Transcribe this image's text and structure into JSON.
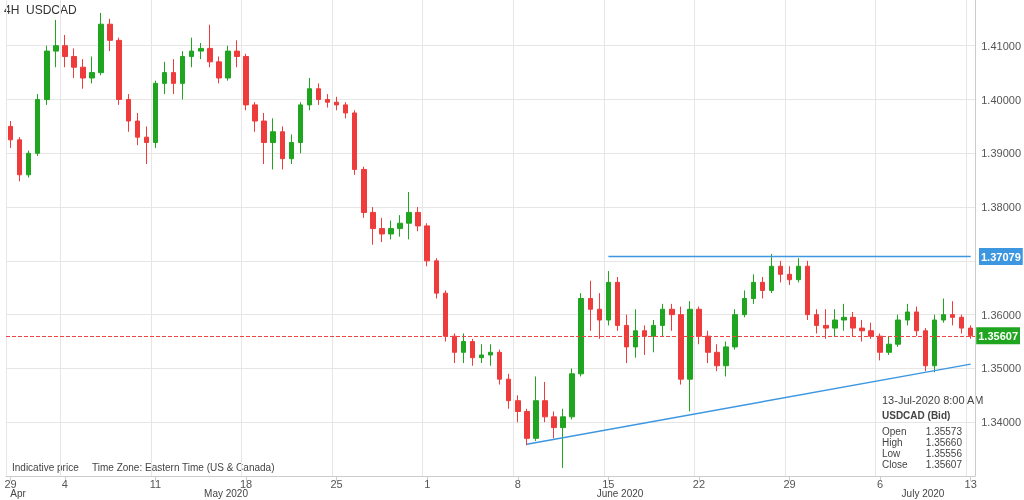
{
  "chart_data": {
    "type": "candlestick",
    "title": "4H",
    "subtitle": "USDCAD",
    "categories": [
      "29",
      null,
      null,
      null,
      null,
      null,
      "4",
      null,
      null,
      null,
      null,
      null,
      null,
      null,
      null,
      null,
      "11",
      null,
      null,
      null,
      null,
      null,
      null,
      null,
      null,
      null,
      "18",
      null,
      null,
      null,
      null,
      null,
      null,
      null,
      null,
      null,
      "25",
      null,
      null,
      null,
      null,
      null,
      null,
      null,
      null,
      null,
      "1",
      null,
      null,
      null,
      null,
      null,
      null,
      null,
      null,
      null,
      "8",
      null,
      null,
      null,
      null,
      null,
      null,
      null,
      null,
      null,
      "15",
      null,
      null,
      null,
      null,
      null,
      null,
      null,
      null,
      null,
      "22",
      null,
      null,
      null,
      null,
      null,
      null,
      null,
      null,
      null,
      "29",
      null,
      null,
      null,
      null,
      null,
      null,
      null,
      null,
      null,
      "6",
      null,
      null,
      null,
      null,
      null,
      null,
      null,
      null,
      null,
      "13"
    ],
    "ohlc": [
      [
        1.395,
        1.396,
        1.391,
        1.3925
      ],
      [
        1.3925,
        1.393,
        1.3848,
        1.386
      ],
      [
        1.386,
        1.3905,
        1.3855,
        1.39
      ],
      [
        1.39,
        1.401,
        1.3895,
        1.4
      ],
      [
        1.4,
        1.41,
        1.399,
        1.409
      ],
      [
        1.409,
        1.4148,
        1.406,
        1.41
      ],
      [
        1.41,
        1.412,
        1.406,
        1.408
      ],
      [
        1.408,
        1.4095,
        1.404,
        1.406
      ],
      [
        1.406,
        1.4075,
        1.402,
        1.404
      ],
      [
        1.404,
        1.408,
        1.403,
        1.405
      ],
      [
        1.405,
        1.4161,
        1.4045,
        1.414
      ],
      [
        1.414,
        1.415,
        1.409,
        1.411
      ],
      [
        1.411,
        1.4115,
        1.399,
        1.4
      ],
      [
        1.4,
        1.401,
        1.394,
        1.396
      ],
      [
        1.396,
        1.3975,
        1.3915,
        1.393
      ],
      [
        1.393,
        1.395,
        1.388,
        1.392
      ],
      [
        1.392,
        1.4035,
        1.391,
        1.403
      ],
      [
        1.403,
        1.407,
        1.401,
        1.405
      ],
      [
        1.405,
        1.4075,
        1.401,
        1.403
      ],
      [
        1.403,
        1.409,
        1.4,
        1.408
      ],
      [
        1.408,
        1.4115,
        1.406,
        1.409
      ],
      [
        1.409,
        1.4105,
        1.4075,
        1.4095
      ],
      [
        1.4095,
        1.4139,
        1.406,
        1.407
      ],
      [
        1.407,
        1.408,
        1.403,
        1.404
      ],
      [
        1.404,
        1.41,
        1.4035,
        1.409
      ],
      [
        1.409,
        1.411,
        1.406,
        1.408
      ],
      [
        1.408,
        1.4085,
        1.398,
        1.399
      ],
      [
        1.399,
        1.3995,
        1.394,
        1.396
      ],
      [
        1.396,
        1.3975,
        1.388,
        1.392
      ],
      [
        1.392,
        1.3965,
        1.387,
        1.394
      ],
      [
        1.394,
        1.395,
        1.387,
        1.389
      ],
      [
        1.389,
        1.3935,
        1.388,
        1.392
      ],
      [
        1.392,
        1.3995,
        1.39,
        1.399
      ],
      [
        1.399,
        1.404,
        1.398,
        1.402
      ],
      [
        1.402,
        1.403,
        1.399,
        1.4
      ],
      [
        1.4,
        1.401,
        1.3985,
        1.3995
      ],
      [
        1.3995,
        1.4005,
        1.398,
        1.399
      ],
      [
        1.399,
        1.3995,
        1.3965,
        1.3975
      ],
      [
        1.3975,
        1.398,
        1.386,
        1.387
      ],
      [
        1.387,
        1.3875,
        1.378,
        1.379
      ],
      [
        1.379,
        1.38,
        1.373,
        1.376
      ],
      [
        1.376,
        1.378,
        1.3735,
        1.375
      ],
      [
        1.375,
        1.3775,
        1.374,
        1.376
      ],
      [
        1.376,
        1.3785,
        1.3745,
        1.377
      ],
      [
        1.377,
        1.3828,
        1.374,
        1.379
      ],
      [
        1.379,
        1.38,
        1.3755,
        1.3765
      ],
      [
        1.3765,
        1.377,
        1.369,
        1.37
      ],
      [
        1.37,
        1.3705,
        1.363,
        1.364
      ],
      [
        1.364,
        1.3645,
        1.355,
        1.356
      ],
      [
        1.356,
        1.3565,
        1.351,
        1.353
      ],
      [
        1.353,
        1.3565,
        1.351,
        1.355
      ],
      [
        1.355,
        1.3555,
        1.3505,
        1.352
      ],
      [
        1.352,
        1.3545,
        1.351,
        1.3525
      ],
      [
        1.3525,
        1.3545,
        1.3505,
        1.353
      ],
      [
        1.353,
        1.3535,
        1.347,
        1.348
      ],
      [
        1.348,
        1.349,
        1.3425,
        1.344
      ],
      [
        1.344,
        1.345,
        1.34,
        1.342
      ],
      [
        1.342,
        1.3425,
        1.3357,
        1.337
      ],
      [
        1.337,
        1.3485,
        1.3365,
        1.344
      ],
      [
        1.344,
        1.3475,
        1.34,
        1.341
      ],
      [
        1.341,
        1.342,
        1.337,
        1.339
      ],
      [
        1.339,
        1.3425,
        1.3315,
        1.341
      ],
      [
        1.341,
        1.35,
        1.3405,
        1.349
      ],
      [
        1.349,
        1.364,
        1.3485,
        1.363
      ],
      [
        1.363,
        1.3663,
        1.357,
        1.361
      ],
      [
        1.361,
        1.364,
        1.3555,
        1.359
      ],
      [
        1.359,
        1.3681,
        1.358,
        1.366
      ],
      [
        1.366,
        1.367,
        1.357,
        1.358
      ],
      [
        1.358,
        1.36,
        1.351,
        1.354
      ],
      [
        1.354,
        1.361,
        1.352,
        1.357
      ],
      [
        1.357,
        1.358,
        1.3525,
        1.356
      ],
      [
        1.356,
        1.359,
        1.353,
        1.358
      ],
      [
        1.358,
        1.362,
        1.356,
        1.361
      ],
      [
        1.361,
        1.362,
        1.357,
        1.36
      ],
      [
        1.36,
        1.3615,
        1.347,
        1.348
      ],
      [
        1.348,
        1.3625,
        1.342,
        1.361
      ],
      [
        1.361,
        1.3615,
        1.3545,
        1.356
      ],
      [
        1.356,
        1.357,
        1.351,
        1.353
      ],
      [
        1.353,
        1.3545,
        1.3495,
        1.3505
      ],
      [
        1.3505,
        1.355,
        1.3485,
        1.354
      ],
      [
        1.354,
        1.361,
        1.3535,
        1.36
      ],
      [
        1.36,
        1.3645,
        1.3595,
        1.363
      ],
      [
        1.363,
        1.3675,
        1.362,
        1.366
      ],
      [
        1.366,
        1.367,
        1.363,
        1.3645
      ],
      [
        1.3645,
        1.3713,
        1.364,
        1.369
      ],
      [
        1.369,
        1.37,
        1.366,
        1.3675
      ],
      [
        1.3675,
        1.369,
        1.3655,
        1.3665
      ],
      [
        1.3665,
        1.3705,
        1.366,
        1.369
      ],
      [
        1.369,
        1.37,
        1.359,
        1.36
      ],
      [
        1.36,
        1.361,
        1.3565,
        1.358
      ],
      [
        1.358,
        1.361,
        1.3555,
        1.3575
      ],
      [
        1.3575,
        1.361,
        1.356,
        1.359
      ],
      [
        1.359,
        1.362,
        1.357,
        1.3595
      ],
      [
        1.3595,
        1.3605,
        1.356,
        1.3575
      ],
      [
        1.3575,
        1.359,
        1.355,
        1.357
      ],
      [
        1.357,
        1.3585,
        1.3555,
        1.356
      ],
      [
        1.356,
        1.3565,
        1.3515,
        1.353
      ],
      [
        1.353,
        1.356,
        1.3525,
        1.3545
      ],
      [
        1.3545,
        1.36,
        1.354,
        1.359
      ],
      [
        1.359,
        1.362,
        1.358,
        1.3605
      ],
      [
        1.3605,
        1.3615,
        1.356,
        1.357
      ],
      [
        1.357,
        1.3575,
        1.3495,
        1.3505
      ],
      [
        1.3505,
        1.36,
        1.3493,
        1.359
      ],
      [
        1.359,
        1.363,
        1.3585,
        1.36
      ],
      [
        1.36,
        1.3625,
        1.358,
        1.3595
      ],
      [
        1.3595,
        1.36,
        1.3565,
        1.3575
      ],
      [
        1.3575,
        1.358,
        1.3555,
        1.3561
      ]
    ],
    "series": [
      {
        "type": "line",
        "color": "#3d97e0",
        "values": [
          null,
          null,
          null,
          null,
          null,
          null,
          null,
          null,
          null,
          null,
          null,
          null,
          null,
          null,
          null,
          null,
          null,
          null,
          null,
          null,
          null,
          null,
          null,
          null,
          null,
          null,
          null,
          null,
          null,
          null,
          null,
          null,
          null,
          null,
          null,
          null,
          null,
          null,
          null,
          null,
          null,
          null,
          null,
          null,
          null,
          null,
          null,
          null,
          null,
          null,
          null,
          null,
          null,
          null,
          null,
          null,
          null,
          null,
          null,
          null,
          null,
          null,
          null,
          null,
          null,
          null,
          1.3708,
          null,
          null,
          null,
          null,
          null,
          null,
          null,
          null,
          null,
          null,
          null,
          null,
          null,
          null,
          null,
          null,
          null,
          null,
          null,
          null,
          null,
          null,
          null,
          null,
          null,
          null,
          null,
          null,
          null,
          null,
          null,
          null,
          null,
          null,
          null,
          null,
          null,
          null,
          null,
          1.3708
        ]
      },
      {
        "type": "line",
        "color": "#3d97e0",
        "values": [
          null,
          null,
          null,
          null,
          null,
          null,
          null,
          null,
          null,
          null,
          null,
          null,
          null,
          null,
          null,
          null,
          null,
          null,
          null,
          null,
          null,
          null,
          null,
          null,
          null,
          null,
          null,
          null,
          null,
          null,
          null,
          null,
          null,
          null,
          null,
          null,
          null,
          null,
          null,
          null,
          null,
          null,
          null,
          null,
          null,
          null,
          null,
          null,
          null,
          null,
          null,
          null,
          null,
          null,
          null,
          null,
          null,
          1.3359,
          null,
          null,
          null,
          null,
          null,
          null,
          null,
          null,
          null,
          null,
          null,
          null,
          null,
          null,
          null,
          null,
          null,
          null,
          null,
          null,
          null,
          null,
          null,
          null,
          null,
          null,
          null,
          null,
          null,
          null,
          null,
          null,
          null,
          null,
          null,
          null,
          null,
          null,
          null,
          null,
          null,
          null,
          null,
          null,
          null,
          null,
          null,
          null,
          1.3508
        ]
      }
    ],
    "ylim": [
      1.33,
      1.4185
    ],
    "yticks": [
      {
        "value": 1.34,
        "label": "1.34000"
      },
      {
        "value": 1.35,
        "label": "1.35000"
      },
      {
        "value": 1.36,
        "label": "1.36000"
      },
      {
        "value": 1.37,
        "label": null
      },
      {
        "value": 1.38,
        "label": "1.38000"
      },
      {
        "value": 1.39,
        "label": "1.39000"
      },
      {
        "value": 1.4,
        "label": "1.40000"
      },
      {
        "value": 1.41,
        "label": "1.41000"
      }
    ],
    "ref_lines": [
      {
        "axis": "y",
        "value": 1.35607,
        "label": "1.35607",
        "color": "#ee4444",
        "line_style": "dashed"
      }
    ],
    "annotations": [
      "Indicative price",
      "Time Zone: Eastern Time (US & Canada)",
      "13-Jul-2020 8:00 AM",
      "USDCAD (Bid)",
      "Open",
      "1.35573",
      "High",
      "1.35660",
      "Low",
      "1.35556",
      "Close",
      "1.35607",
      "Apr",
      "May 2020",
      "June 2020",
      "July 2020",
      "1.37079"
    ],
    "grid": true
  }
}
